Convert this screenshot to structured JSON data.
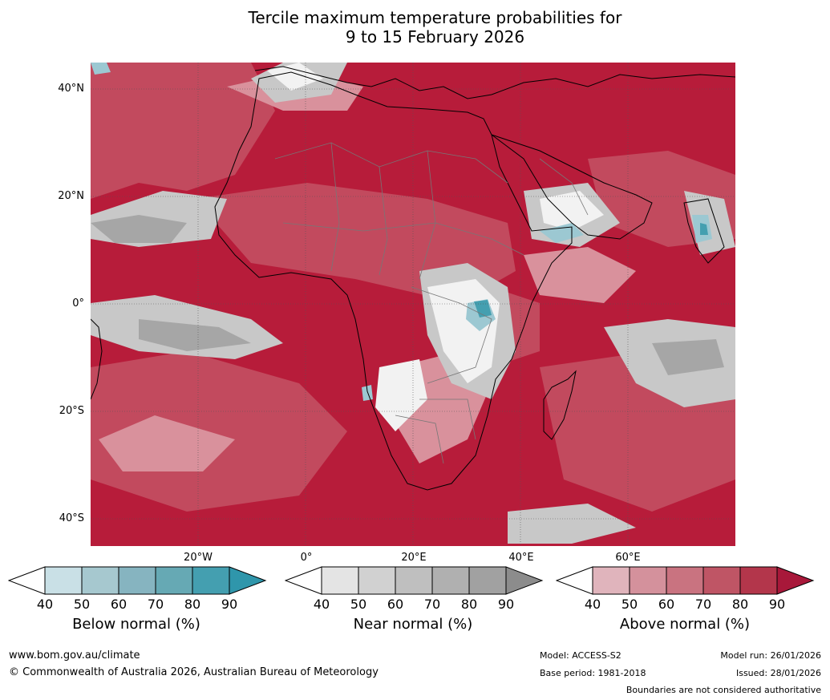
{
  "title_line1": "Tercile maximum temperature probabilities for",
  "title_line2": "9 to 15 February 2026",
  "lat_labels": [
    "40°N",
    "20°N",
    "0°",
    "20°S",
    "40°S"
  ],
  "lon_labels": [
    "20°W",
    "0°",
    "20°E",
    "40°E",
    "60°E"
  ],
  "legends": [
    {
      "label": "Below normal (%)",
      "ticks": [
        "40",
        "50",
        "60",
        "70",
        "80",
        "90"
      ],
      "colors": [
        "#c9e0e6",
        "#a6c8cf",
        "#86b4c0",
        "#66a9b4",
        "#449fb0"
      ],
      "over": "#2f96ab"
    },
    {
      "label": "Near normal (%)",
      "ticks": [
        "40",
        "50",
        "60",
        "70",
        "80",
        "90"
      ],
      "colors": [
        "#e4e4e4",
        "#d1d1d1",
        "#bfbfbf",
        "#b0b0b0",
        "#a1a1a1"
      ],
      "over": "#8c8c8c"
    },
    {
      "label": "Above normal (%)",
      "ticks": [
        "40",
        "50",
        "60",
        "70",
        "80",
        "90"
      ],
      "colors": [
        "#e0b4bc",
        "#d4919c",
        "#c97380",
        "#bf5565",
        "#b3364b"
      ],
      "over": "#a8183a"
    }
  ],
  "footer": {
    "url": "www.bom.gov.au/climate",
    "copyright": "© Commonwealth of Australia 2026, Australian Bureau of Meteorology",
    "model": "Model: ACCESS-S2",
    "base_period": "Base period: 1981-2018",
    "model_run": "Model run: 26/01/2026",
    "issued": "Issued: 28/01/2026",
    "disclaimer": "Boundaries are not considered authoritative"
  },
  "map_colors": {
    "above_dark": "#b71c3a",
    "above_mid": "#c24a5e",
    "above_light": "#d9919c",
    "near": "#c8c8c8",
    "near_dark": "#a6a6a6",
    "white": "#f2f2f2",
    "below": "#9cc8d2",
    "below_dark": "#449fb0",
    "coast": "#000000",
    "border": "#777777"
  }
}
